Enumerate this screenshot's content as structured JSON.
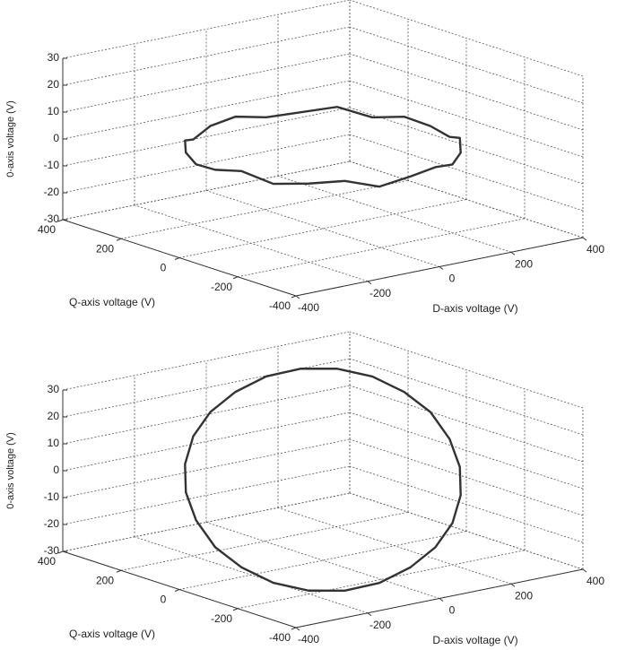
{
  "chart_data": [
    {
      "type": "line3d",
      "xlabel": "D-axis voltage (V)",
      "ylabel": "Q-axis voltage (V)",
      "zlabel": "0-axis voltage (V)",
      "xlim": [
        -400,
        400
      ],
      "ylim": [
        -400,
        400
      ],
      "zlim": [
        -30,
        30
      ],
      "xticks": [
        -400,
        -200,
        0,
        200,
        400
      ],
      "yticks": [
        -400,
        -200,
        0,
        200,
        400
      ],
      "zticks": [
        -30,
        -20,
        -10,
        0,
        10,
        20,
        30
      ],
      "grid": true,
      "color": "#333333",
      "x": [
        300,
        290,
        260,
        212,
        150,
        78,
        0,
        -78,
        -150,
        -212,
        -260,
        -290,
        -300,
        -290,
        -260,
        -212,
        -150,
        -78,
        0,
        78,
        150,
        212,
        260,
        290,
        300
      ],
      "y": [
        0,
        78,
        150,
        212,
        260,
        290,
        300,
        290,
        260,
        212,
        150,
        78,
        0,
        -78,
        -150,
        -212,
        -260,
        -290,
        -300,
        -290,
        -260,
        -212,
        -150,
        -78,
        0
      ],
      "z": [
        0,
        1,
        -1,
        2,
        0,
        -1,
        1,
        0,
        -2,
        1,
        0,
        -1,
        0,
        2,
        -1,
        0,
        1,
        -2,
        0,
        1,
        -1,
        0,
        2,
        -1,
        0
      ]
    },
    {
      "type": "line3d",
      "xlabel": "D-axis voltage (V)",
      "ylabel": "Q-axis voltage (V)",
      "zlabel": "0-axis voltage (V)",
      "xlim": [
        -400,
        400
      ],
      "ylim": [
        -400,
        400
      ],
      "zlim": [
        -30,
        30
      ],
      "xticks": [
        -400,
        -200,
        0,
        200,
        400
      ],
      "yticks": [
        -400,
        -200,
        0,
        200,
        400
      ],
      "zticks": [
        -30,
        -20,
        -10,
        0,
        10,
        20,
        30
      ],
      "grid": true,
      "color": "#333333",
      "x": [
        300,
        290,
        260,
        212,
        150,
        78,
        0,
        -78,
        -150,
        -212,
        -260,
        -290,
        -300,
        -290,
        -260,
        -212,
        -150,
        -78,
        0,
        78,
        150,
        212,
        260,
        290,
        300
      ],
      "y": [
        0,
        78,
        150,
        212,
        260,
        290,
        300,
        290,
        260,
        212,
        150,
        78,
        0,
        -78,
        -150,
        -212,
        -260,
        -290,
        -300,
        -290,
        -260,
        -212,
        -150,
        -78,
        0
      ],
      "z": [
        17,
        22,
        26,
        28,
        28,
        26,
        22,
        17,
        11,
        4,
        -3,
        -10,
        -17,
        -22,
        -26,
        -28,
        -28,
        -26,
        -22,
        -17,
        -11,
        -4,
        3,
        10,
        17
      ]
    }
  ]
}
